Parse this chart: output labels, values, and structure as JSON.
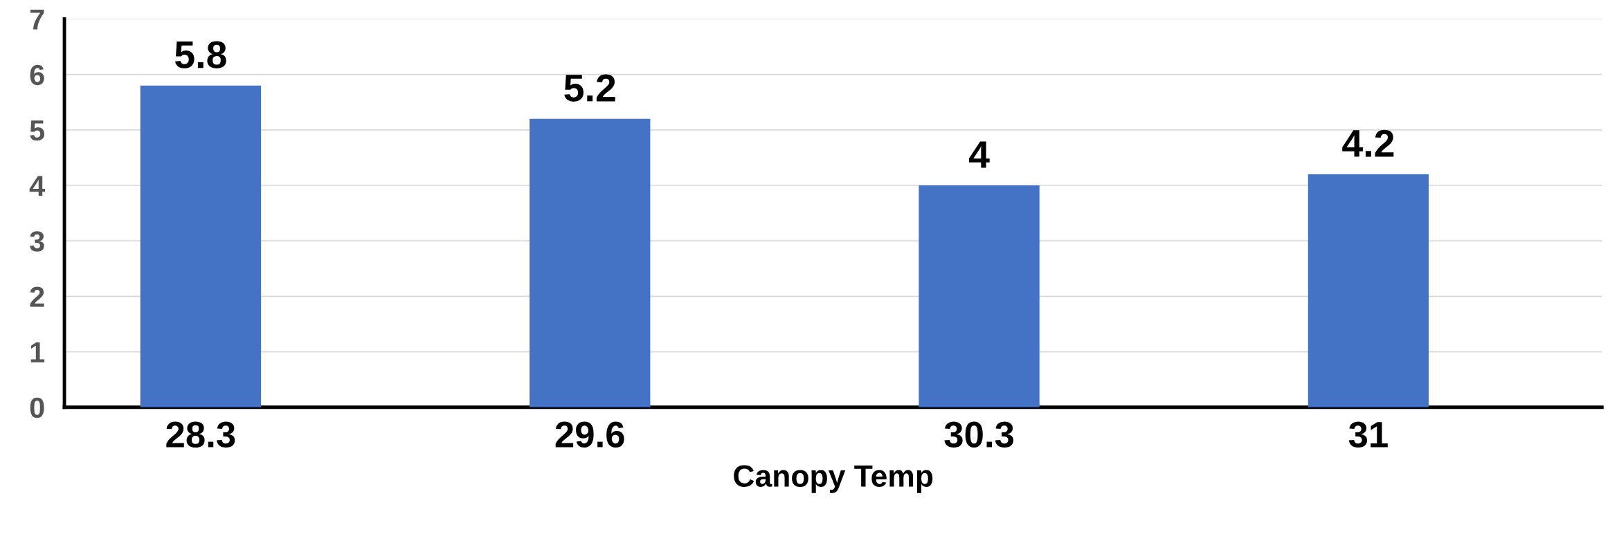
{
  "chart_data": {
    "type": "bar",
    "xlabel": "Canopy Temp",
    "categories": [
      "28.3",
      "29.6",
      "30.3",
      "31"
    ],
    "values": [
      5.8,
      5.2,
      4,
      4.2
    ],
    "color": "#4472c4",
    "ylim": [
      0,
      7
    ],
    "yticks": [
      0,
      1,
      2,
      3,
      4,
      5,
      6,
      7
    ],
    "grid": "y",
    "data_labels": true,
    "legend": false
  }
}
